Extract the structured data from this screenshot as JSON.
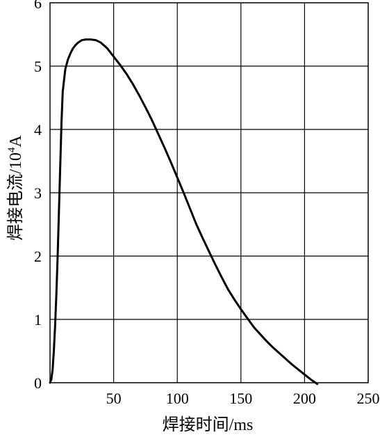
{
  "chart_data": {
    "type": "line",
    "xlabel": "焊接时间/ms",
    "ylabel_prefix": "焊接电流/10",
    "ylabel_exponent": "4",
    "ylabel_suffix": "A",
    "xlim": [
      0,
      250
    ],
    "ylim": [
      0,
      6
    ],
    "x_ticks": [
      0,
      50,
      100,
      150,
      200,
      250
    ],
    "x_tick_labels": [
      "",
      "50",
      "100",
      "150",
      "200",
      "250"
    ],
    "y_ticks": [
      0,
      1,
      2,
      3,
      4,
      5,
      6
    ],
    "y_tick_labels": [
      "0",
      "1",
      "2",
      "3",
      "4",
      "5",
      "6"
    ],
    "grid": true,
    "series": [
      {
        "x": [
          0,
          1,
          2,
          3,
          4,
          5,
          6,
          7,
          8,
          9,
          10,
          12,
          14,
          16,
          18,
          20,
          22,
          25,
          28,
          32,
          36,
          40,
          45,
          50,
          55,
          60,
          65,
          70,
          75,
          80,
          85,
          90,
          95,
          100,
          105,
          110,
          115,
          120,
          125,
          130,
          135,
          140,
          145,
          150,
          155,
          160,
          165,
          170,
          175,
          180,
          185,
          190,
          195,
          200,
          205,
          210
        ],
        "y": [
          0,
          0.05,
          0.2,
          0.5,
          0.9,
          1.4,
          2.0,
          2.7,
          3.4,
          4.1,
          4.6,
          4.95,
          5.1,
          5.2,
          5.28,
          5.33,
          5.37,
          5.41,
          5.42,
          5.42,
          5.41,
          5.37,
          5.28,
          5.15,
          5.02,
          4.88,
          4.72,
          4.54,
          4.35,
          4.15,
          3.93,
          3.71,
          3.48,
          3.24,
          3.0,
          2.75,
          2.5,
          2.28,
          2.07,
          1.86,
          1.66,
          1.47,
          1.31,
          1.16,
          1.02,
          0.88,
          0.77,
          0.66,
          0.56,
          0.47,
          0.38,
          0.29,
          0.21,
          0.13,
          0.05,
          -0.02
        ]
      }
    ]
  }
}
